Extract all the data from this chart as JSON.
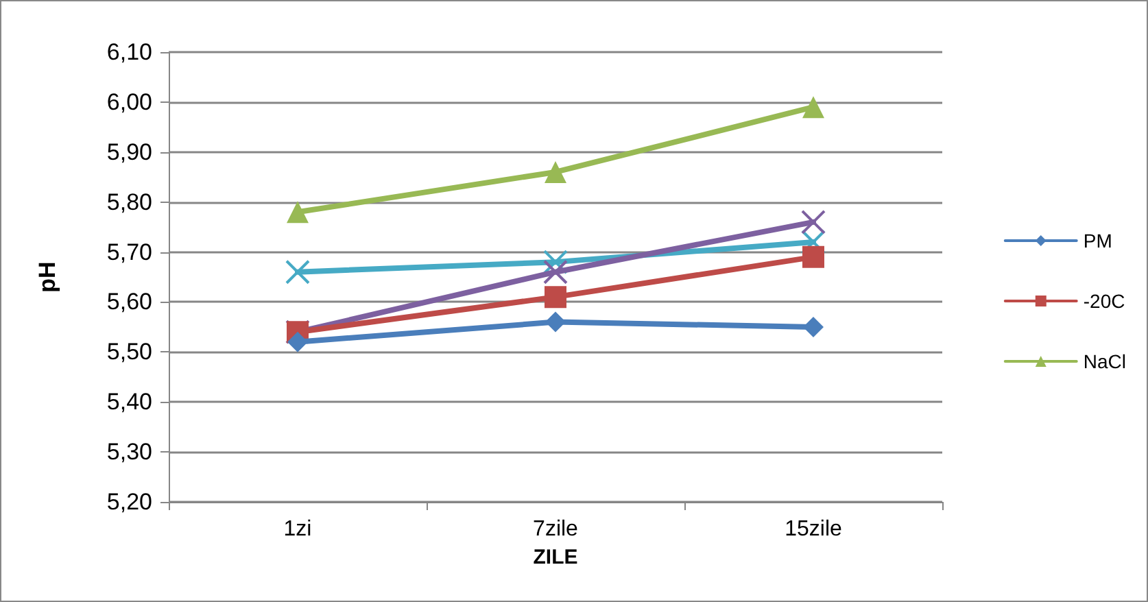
{
  "chart_data": {
    "type": "line",
    "xlabel": "ZILE",
    "ylabel": "pH",
    "categories": [
      "1zi",
      "7zile",
      "15zile"
    ],
    "series": [
      {
        "name": "PM",
        "color": "#4a7ebb",
        "marker": "diamond",
        "values": [
          5.52,
          5.56,
          5.55
        ]
      },
      {
        "name": "-20C",
        "color": "#be4b48",
        "marker": "square",
        "values": [
          5.54,
          5.61,
          5.69
        ]
      },
      {
        "name": "NaCl",
        "color": "#98b954",
        "marker": "triangle",
        "values": [
          5.78,
          5.86,
          5.99
        ]
      },
      {
        "color": "#7d60a0",
        "marker": "cross",
        "values": [
          5.54,
          5.66,
          5.76
        ]
      },
      {
        "color": "#46aac5",
        "marker": "cross",
        "values": [
          5.66,
          5.68,
          5.72
        ]
      }
    ],
    "ylim": [
      5.2,
      6.1
    ],
    "yticks": [
      {
        "value": 5.2,
        "label": "5,20"
      },
      {
        "value": 5.3,
        "label": "5,30"
      },
      {
        "value": 5.4,
        "label": "5,40"
      },
      {
        "value": 5.5,
        "label": "5,50"
      },
      {
        "value": 5.6,
        "label": "5,60"
      },
      {
        "value": 5.7,
        "label": "5,70"
      },
      {
        "value": 5.8,
        "label": "5,80"
      },
      {
        "value": 5.9,
        "label": "5,90"
      },
      {
        "value": 6.0,
        "label": "6,00"
      },
      {
        "value": 6.1,
        "label": "6,10"
      }
    ],
    "grid": "y",
    "legend": "right"
  }
}
